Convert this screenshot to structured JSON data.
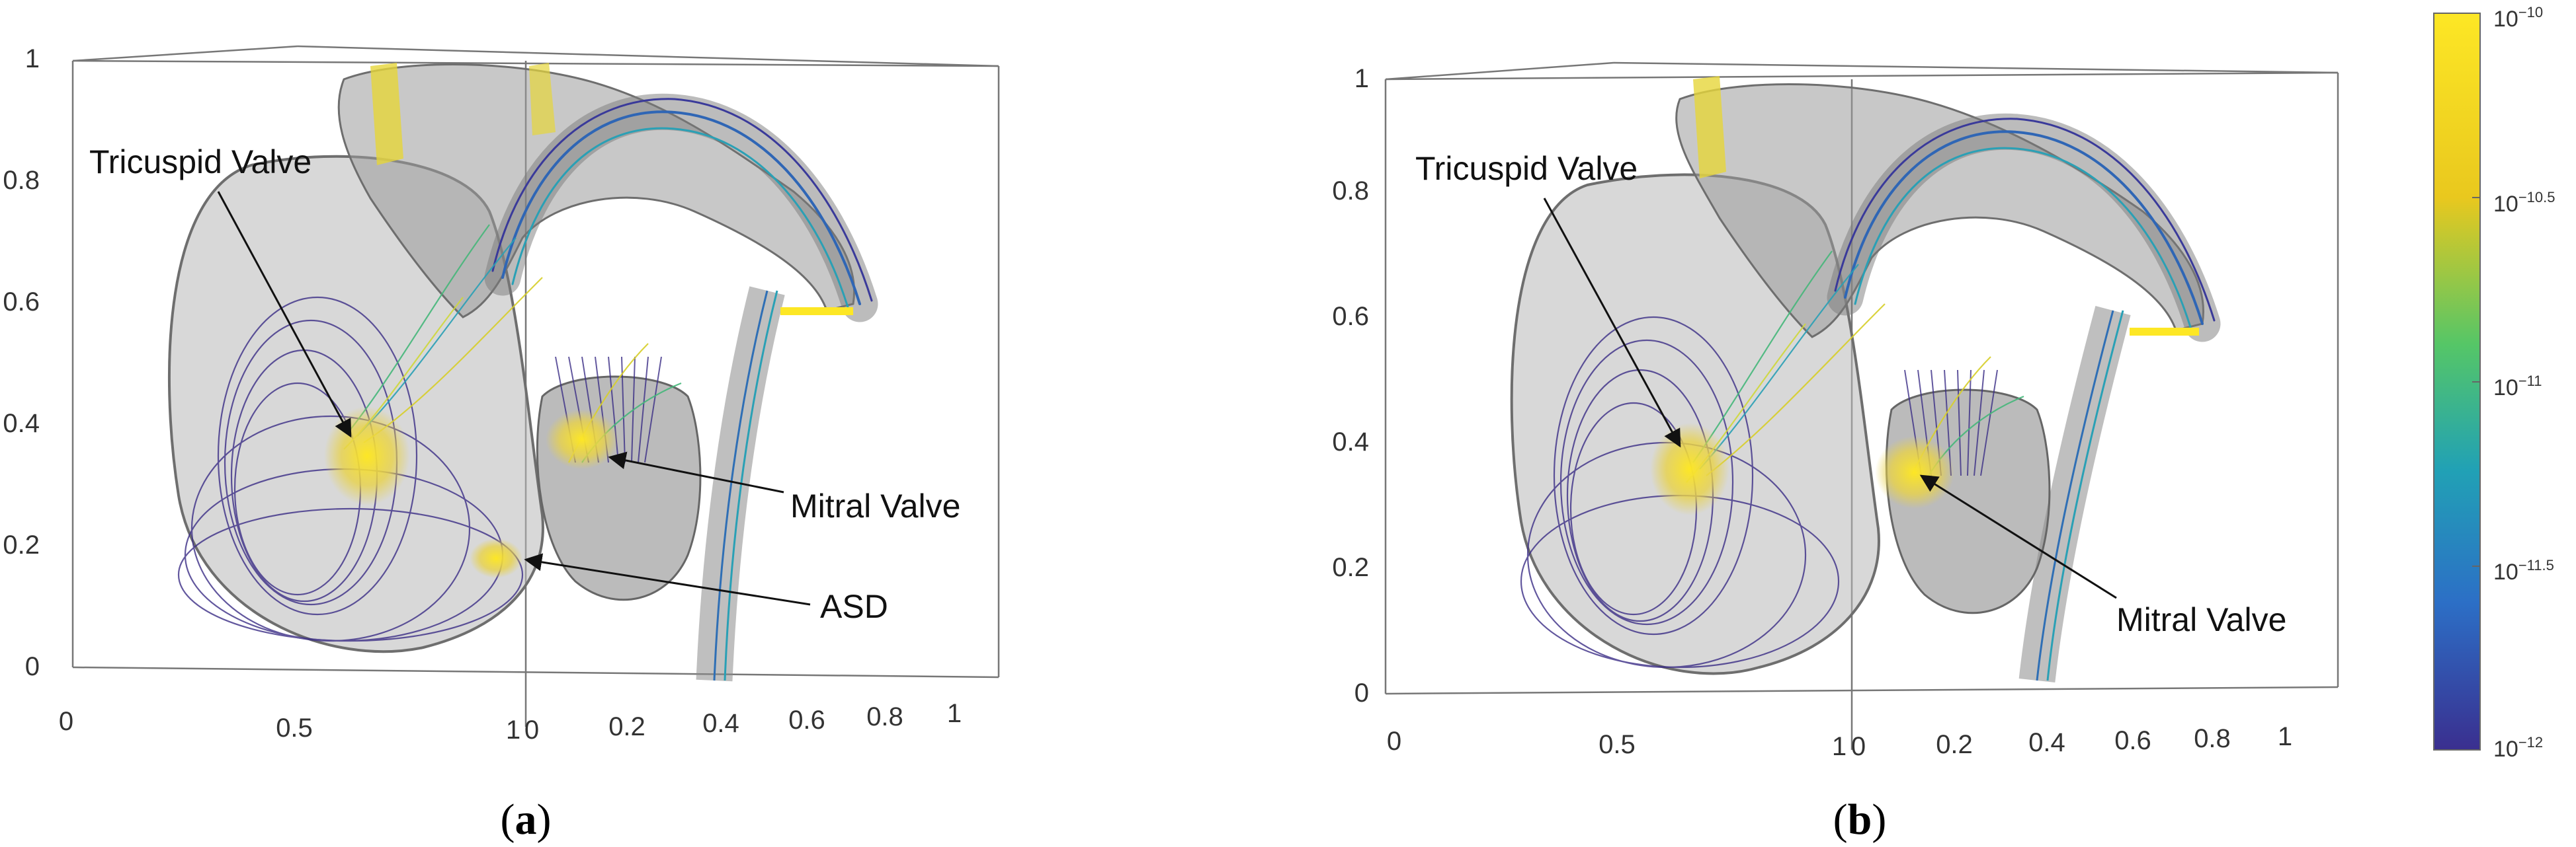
{
  "panels": [
    {
      "id": "a",
      "caption": {
        "open": "(",
        "letter": "a",
        "close": ")"
      },
      "z_ticks": [
        "0",
        "0.2",
        "0.4",
        "0.6",
        "0.8",
        "1"
      ],
      "x_ticks": [
        "0",
        "0.5",
        "1"
      ],
      "y_ticks": [
        "0",
        "0.2",
        "0.4",
        "0.6",
        "0.8",
        "1"
      ],
      "annotations": [
        "Tricuspid Valve",
        "Mitral Valve",
        "ASD"
      ]
    },
    {
      "id": "b",
      "caption": {
        "open": "(",
        "letter": "b",
        "close": ")"
      },
      "z_ticks": [
        "0",
        "0.2",
        "0.4",
        "0.6",
        "0.8",
        "1"
      ],
      "x_ticks": [
        "0",
        "0.5",
        "1"
      ],
      "y_ticks": [
        "0",
        "0.2",
        "0.4",
        "0.6",
        "0.8",
        "1"
      ],
      "annotations": [
        "Tricuspid Valve",
        "Mitral Valve"
      ]
    }
  ],
  "colorbar": {
    "base": "10",
    "exponents": [
      "−10",
      "−10.5",
      "−11",
      "−11.5",
      "−12"
    ],
    "colors": [
      "#fde725",
      "#e4c81f",
      "#55c667",
      "#21a1b5",
      "#2c6fc6",
      "#3a2f8f"
    ]
  }
}
